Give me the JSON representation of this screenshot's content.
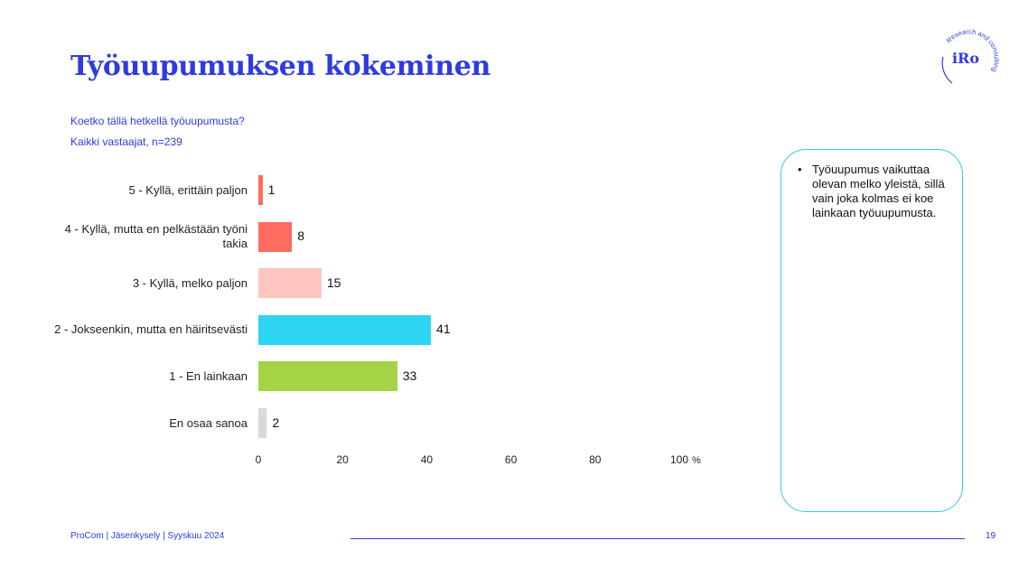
{
  "title": "Työuupumuksen kokeminen",
  "question": "Koetko tällä hetkellä työuupumusta?",
  "sample": "Kaikki vastaajat, n=239",
  "chart_data": {
    "type": "bar",
    "orientation": "horizontal",
    "categories": [
      "5 - Kyllä, erittäin paljon",
      "4 - Kyllä, mutta en pelkästään työni takia",
      "3 - Kyllä, melko paljon",
      "2 - Jokseenkin, mutta en häiritsevästi",
      "1 - En lainkaan",
      "En osaa sanoa"
    ],
    "values": [
      1,
      8,
      15,
      41,
      33,
      2
    ],
    "colors": [
      "#fd6b61",
      "#fd6b61",
      "#ffc5bf",
      "#2dd5f3",
      "#a6d346",
      "#d9d9d9"
    ],
    "x_ticks": [
      "0",
      "20",
      "40",
      "60",
      "80",
      "100"
    ],
    "x_unit": "%",
    "xlim": [
      0,
      100
    ],
    "grid": false,
    "legend": "none"
  },
  "note": {
    "text": "Työuupumus vaikuttaa olevan melko yleistä, sillä vain joka kolmas ei koe lainkaan työuupumusta."
  },
  "footer": {
    "text": "ProCom | Jäsenkysely | Syyskuu 2024",
    "page_number": "19"
  },
  "logo": {
    "text": "iRo",
    "ring_text": "Research and consulting",
    "color": "#2f3be0"
  }
}
